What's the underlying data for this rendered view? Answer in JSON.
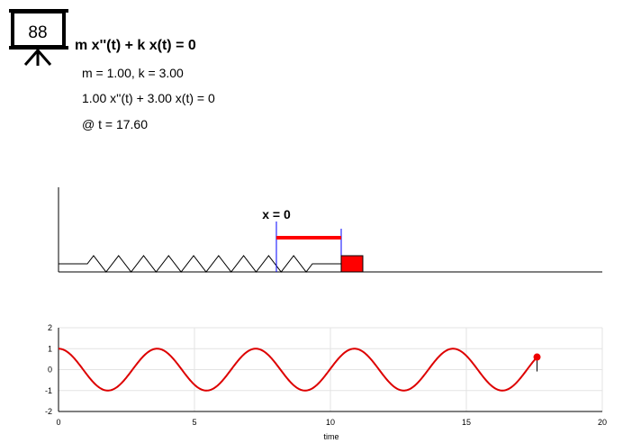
{
  "icon": {
    "name": "presentation-board-icon",
    "display_value": "88"
  },
  "equation": {
    "general": "m x''(t) + k x(t) = 0",
    "params": "m = 1.00, k = 3.00",
    "specific": "1.00 x''(t) + 3.00 x(t) = 0",
    "time_label": "@ t = 17.60"
  },
  "spring_view": {
    "equilibrium_label": "x = 0",
    "coils": 9,
    "current_displacement": 0.6,
    "colors": {
      "mass": "#ff0000",
      "marker": "#0000ff",
      "displacement_bar": "#ff0000",
      "spring": "#000000"
    }
  },
  "chart_data": {
    "type": "line",
    "title": "",
    "xlabel": "time",
    "ylabel": "",
    "xlim": [
      0,
      20
    ],
    "ylim": [
      -2,
      2
    ],
    "x_ticks": [
      "0",
      "5",
      "10",
      "15",
      "20"
    ],
    "y_ticks": [
      "2",
      "1",
      "0",
      "-1",
      "-2"
    ],
    "grid": true,
    "series": [
      {
        "function": "cos(sqrt(k/m) * t)",
        "t_range": [
          0,
          17.6
        ],
        "color": "#dd0000"
      }
    ],
    "current_point": {
      "t": 17.6,
      "x": 0.6,
      "color": "#ee0000"
    }
  }
}
